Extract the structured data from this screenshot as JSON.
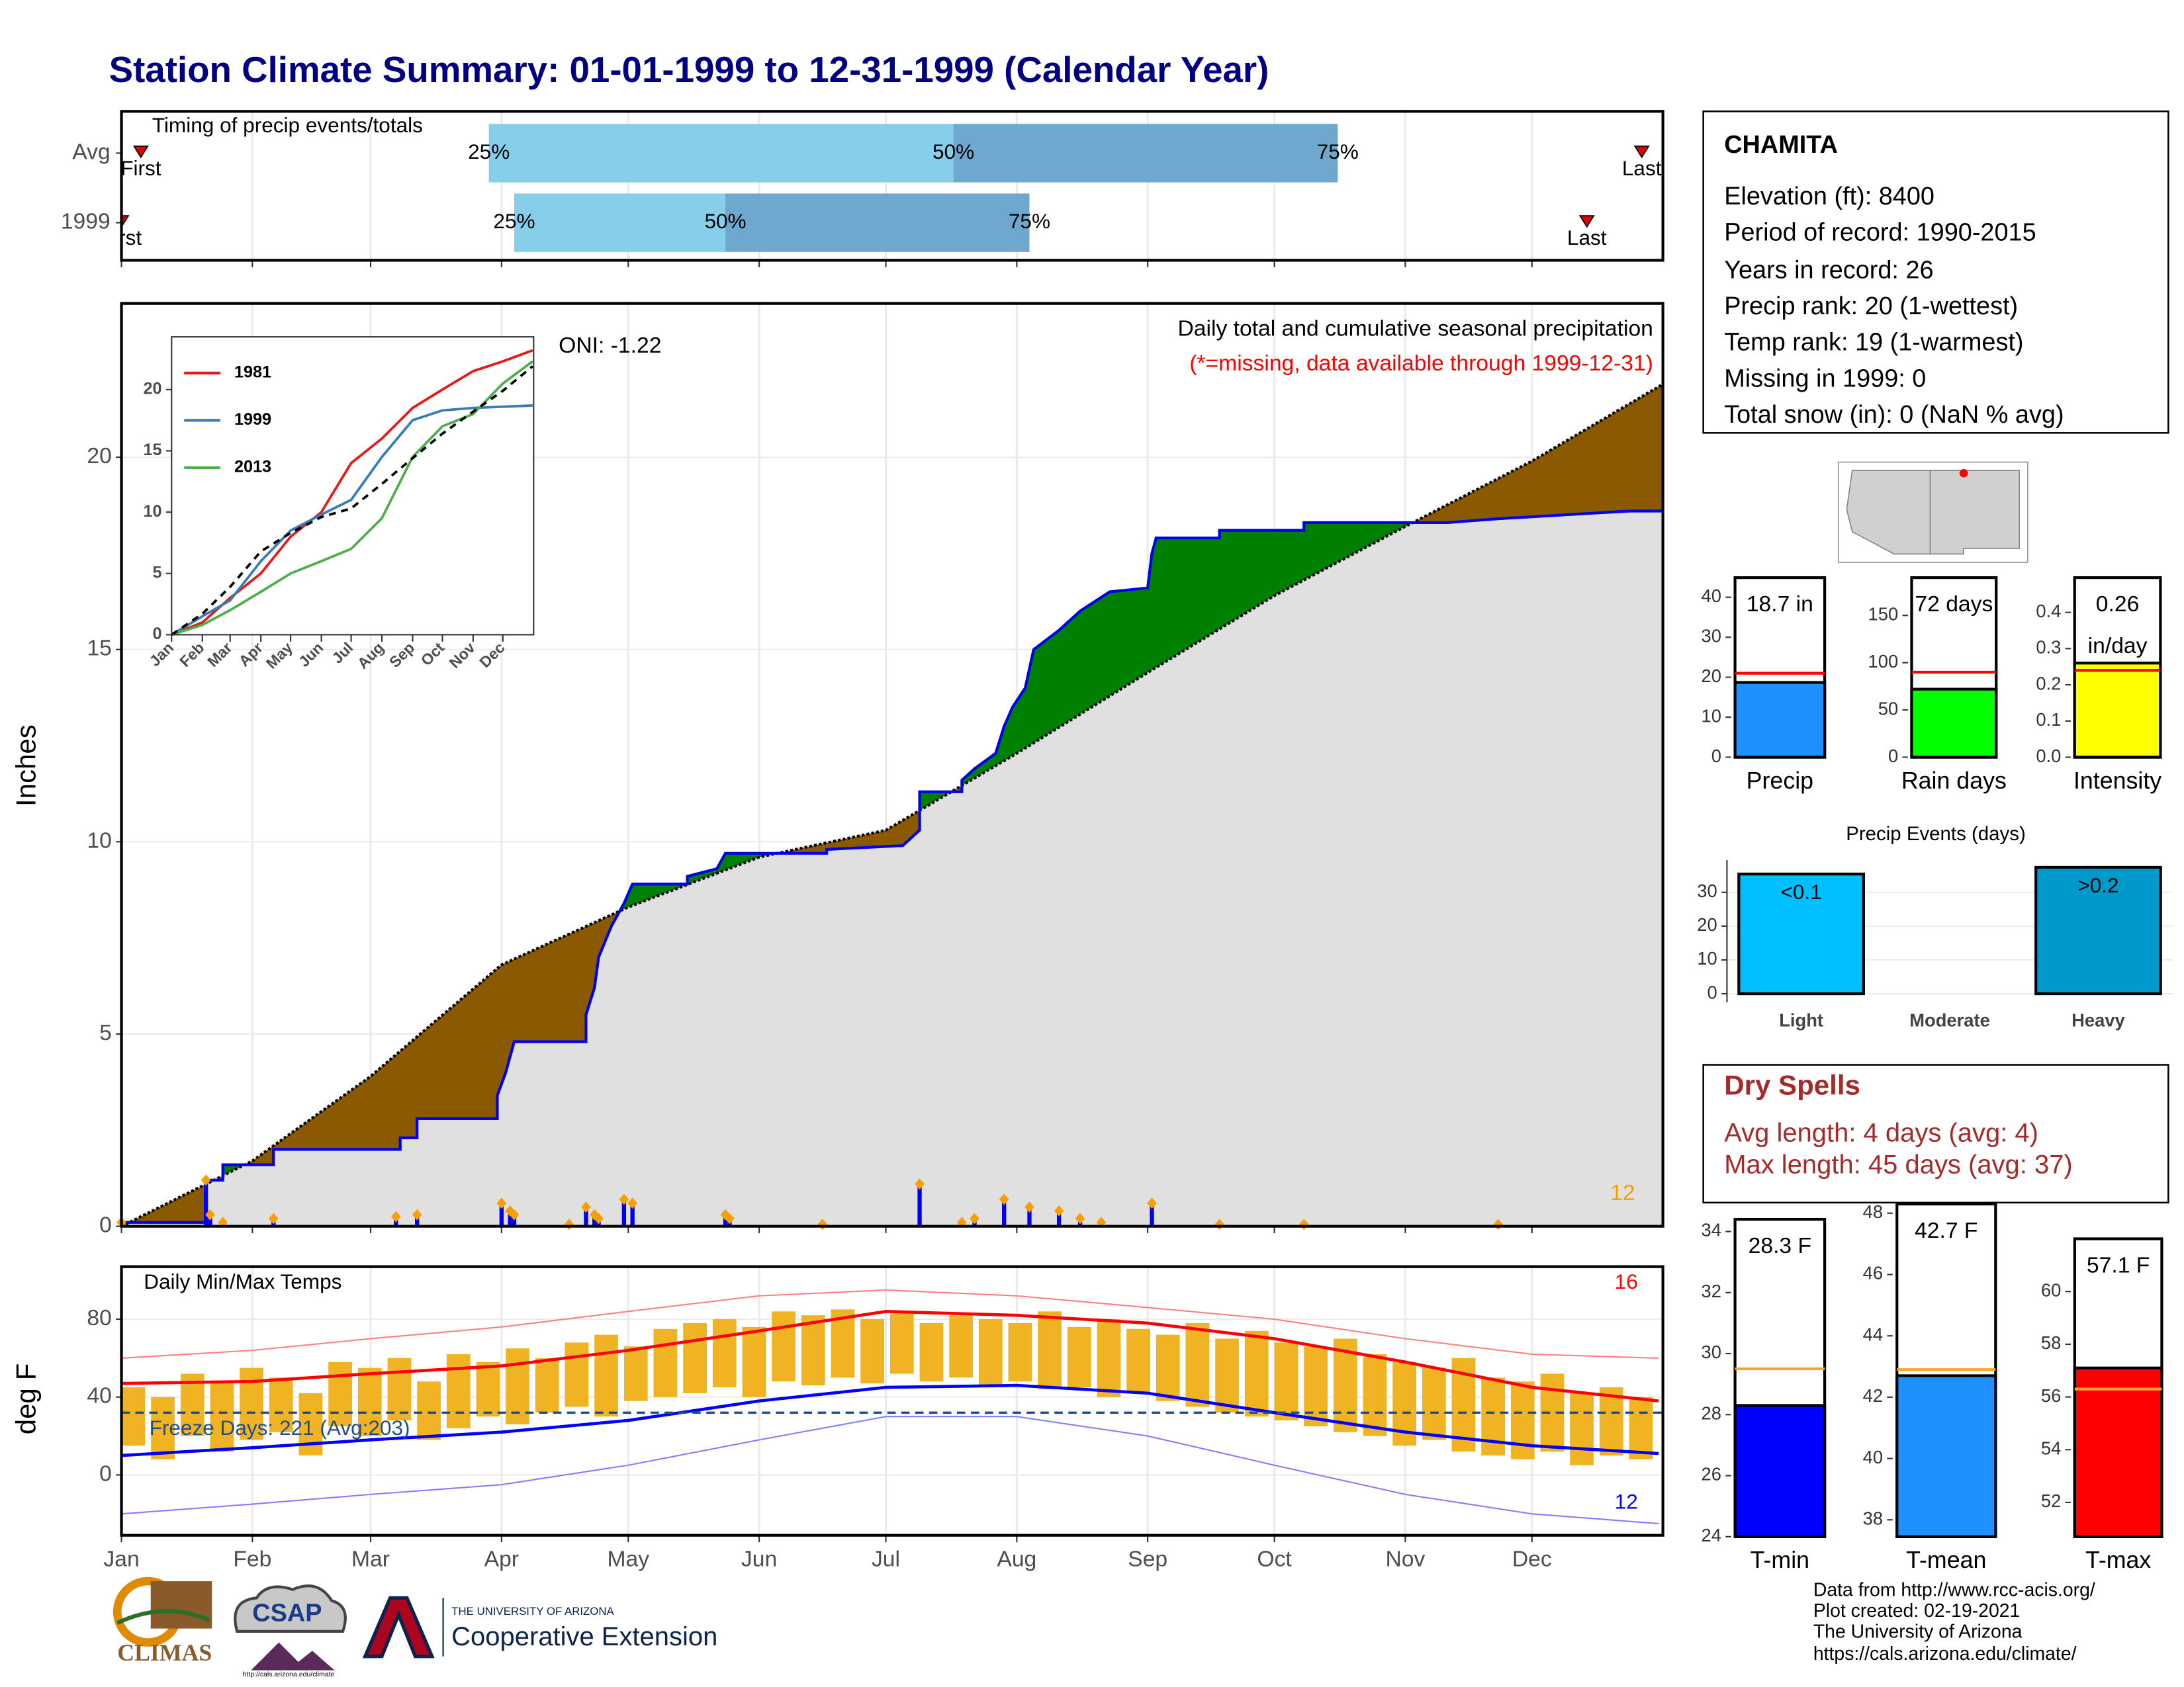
{
  "title": "Station Climate Summary: 01-01-1999 to 12-31-1999 (Calendar Year)",
  "station": {
    "name": "CHAMITA",
    "lines": [
      "Elevation (ft): 8400",
      "Period of record: 1990-2015",
      "Years in record: 26",
      "Precip rank: 20 (1-wettest)",
      "Temp rank: 19 (1-warmest)",
      "Missing in 1999: 0",
      "Total snow (in): 0 (NaN % avg)"
    ]
  },
  "dry_spells": {
    "title": "Dry Spells",
    "lines": [
      "Avg length: 4 days (avg: 4)",
      "Max length: 45 days (avg: 37)"
    ]
  },
  "footer": [
    "Data from http://www.rcc-acis.org/",
    "Plot created: 02-19-2021",
    "The University of Arizona",
    "https://cals.arizona.edu/climate/"
  ],
  "logos": {
    "climas": "CLIMAS",
    "csap": "CSAP",
    "csap_url": "http://cals.arizona.edu/climate",
    "university": "THE UNIVERSITY OF ARIZONA",
    "extension": "Cooperative Extension"
  },
  "chart_data": [
    {
      "type": "timing",
      "title": "Timing of precip events/totals",
      "categories": [
        "Avg",
        "1999"
      ],
      "first": [
        4.6,
        0
      ],
      "q25": [
        87,
        93
      ],
      "q50": [
        197,
        143
      ],
      "q75": [
        288,
        215
      ],
      "last": [
        360,
        347
      ],
      "labels": {
        "first": "First",
        "last": "Last",
        "q25": "25%",
        "q50": "50%",
        "q75": "75%"
      },
      "colors": {
        "low": "#87ceeb",
        "high": "#6fa8cf",
        "marker": "#e00000"
      },
      "xlim": [
        0,
        365
      ],
      "xticks": [
        0,
        31,
        59,
        90,
        120,
        151,
        181,
        212,
        243,
        273,
        304,
        334
      ],
      "grid": true
    },
    {
      "type": "area",
      "title": "Daily total and cumulative seasonal precipitation",
      "subtitle": "(*=missing, data available through 1999-12-31)",
      "oni": "ONI: -1.22",
      "count": "12",
      "ylabel": "Inches",
      "xlim": [
        0,
        365
      ],
      "xticks": [
        0,
        31,
        59,
        90,
        120,
        151,
        181,
        212,
        243,
        273,
        304,
        334
      ],
      "ylim": [
        0,
        24
      ],
      "yticks": [
        0,
        5,
        10,
        15,
        20
      ],
      "grid": true,
      "series": [
        {
          "color": "#000000",
          "x": [
            0,
            31,
            59,
            90,
            120,
            151,
            181,
            212,
            243,
            273,
            304,
            334,
            365
          ],
          "values": [
            0,
            1.7,
            3.9,
            6.8,
            8.3,
            9.6,
            10.3,
            12.3,
            14.4,
            16.4,
            18.2,
            19.9,
            21.9
          ]
        },
        {
          "color": "#0000ee",
          "x": [
            0,
            20,
            20,
            24,
            24,
            36,
            36,
            66,
            66,
            70,
            70,
            89,
            89,
            91,
            93,
            110,
            110,
            112,
            113,
            116,
            119,
            121,
            134,
            134,
            141,
            143,
            167,
            167,
            185,
            189,
            189,
            199,
            199,
            202,
            207,
            209,
            211,
            214,
            216,
            222,
            227,
            234,
            243,
            244,
            245,
            260,
            260,
            280,
            280,
            314,
            326,
            357,
            365
          ],
          "values": [
            0.1,
            0.1,
            1.2,
            1.2,
            1.6,
            1.6,
            2.0,
            2.0,
            2.3,
            2.3,
            2.8,
            2.8,
            3.4,
            4.0,
            4.8,
            4.8,
            5.5,
            6.2,
            7.0,
            7.8,
            8.4,
            8.9,
            8.9,
            9.1,
            9.3,
            9.7,
            9.7,
            9.8,
            9.9,
            10.3,
            11.3,
            11.3,
            11.6,
            11.9,
            12.3,
            13.0,
            13.5,
            14.0,
            15.0,
            15.5,
            16.0,
            16.5,
            16.6,
            17.5,
            17.9,
            17.9,
            18.1,
            18.1,
            18.3,
            18.3,
            18.4,
            18.6,
            18.6
          ]
        }
      ],
      "fill_colors": {
        "below_avg": "#8b5a00",
        "above_avg": "#008000",
        "base": "#e0e0e0"
      },
      "daily": {
        "color": "#0000ee",
        "marker_color": "#f5a000",
        "x": [
          0,
          20,
          21,
          24,
          36,
          65,
          70,
          90,
          92,
          93,
          106,
          110,
          112,
          113,
          119,
          121,
          143,
          144,
          166,
          189,
          199,
          202,
          209,
          215,
          222,
          227,
          232,
          244,
          260,
          280,
          326
        ],
        "values": [
          0.1,
          1.2,
          0.3,
          0.1,
          0.2,
          0.25,
          0.3,
          0.6,
          0.4,
          0.3,
          0.05,
          0.5,
          0.3,
          0.2,
          0.7,
          0.6,
          0.3,
          0.2,
          0.05,
          1.1,
          0.1,
          0.2,
          0.7,
          0.5,
          0.4,
          0.2,
          0.1,
          0.6,
          0.05,
          0.05,
          0.05
        ]
      }
    },
    {
      "type": "line",
      "xlim": [
        0,
        365
      ],
      "ylim": [
        0,
        24.3
      ],
      "yticks": [
        0,
        5,
        10,
        15,
        20
      ],
      "xticks": [
        {
          "value": 0,
          "label": "Jan"
        },
        {
          "value": 31,
          "label": "Feb"
        },
        {
          "value": 59,
          "label": "Mar"
        },
        {
          "value": 90,
          "label": "Apr"
        },
        {
          "value": 120,
          "label": "May"
        },
        {
          "value": 151,
          "label": "Jun"
        },
        {
          "value": 181,
          "label": "Jul"
        },
        {
          "value": 212,
          "label": "Aug"
        },
        {
          "value": 243,
          "label": "Sep"
        },
        {
          "value": 273,
          "label": "Oct"
        },
        {
          "value": 304,
          "label": "Nov"
        },
        {
          "value": 334,
          "label": "Dec"
        }
      ],
      "x": [
        0,
        31,
        59,
        90,
        120,
        151,
        181,
        212,
        243,
        273,
        304,
        334,
        364
      ],
      "series": [
        {
          "name": "1981",
          "color": "#e41a1c",
          "values": [
            0,
            1,
            3,
            5,
            8,
            10,
            14,
            16,
            18.5,
            20,
            21.5,
            22.3,
            23.2
          ]
        },
        {
          "name": "1999",
          "color": "#377eb8",
          "values": [
            0,
            1.5,
            2.8,
            6,
            8.5,
            9.8,
            11,
            14.5,
            17.5,
            18.3,
            18.5,
            18.6,
            18.7
          ]
        },
        {
          "name": "2013",
          "color": "#4daf4a",
          "values": [
            0,
            0.8,
            2,
            3.5,
            5,
            6,
            7,
            9.5,
            14.5,
            17,
            18,
            20.5,
            22.3
          ]
        },
        {
          "color": "#000000",
          "dash": true,
          "values": [
            0,
            1.7,
            3.9,
            6.8,
            8.3,
            9.6,
            10.3,
            12.3,
            14.4,
            16.4,
            18.2,
            19.9,
            21.9
          ]
        }
      ]
    },
    {
      "type": "range",
      "title": "Daily Min/Max Temps",
      "ylabel": "deg F",
      "freeze_text": "Freeze Days: 221 (Avg:203)",
      "freeze_line": 32,
      "count_hi": "16",
      "count_lo": "12",
      "xlim": [
        0,
        365
      ],
      "ylim": [
        -31,
        107
      ],
      "yticks": [
        0,
        40,
        80
      ],
      "grid": true,
      "xticks": [
        {
          "value": 0,
          "label": "Jan"
        },
        {
          "value": 31,
          "label": "Feb"
        },
        {
          "value": 59,
          "label": "Mar"
        },
        {
          "value": 90,
          "label": "Apr"
        },
        {
          "value": 120,
          "label": "May"
        },
        {
          "value": 151,
          "label": "Jun"
        },
        {
          "value": 181,
          "label": "Jul"
        },
        {
          "value": 212,
          "label": "Aug"
        },
        {
          "value": 243,
          "label": "Sep"
        },
        {
          "value": 273,
          "label": "Oct"
        },
        {
          "value": 304,
          "label": "Nov"
        },
        {
          "value": 334,
          "label": "Dec"
        }
      ],
      "x": [
        0,
        31,
        59,
        90,
        120,
        151,
        181,
        212,
        243,
        273,
        304,
        334,
        364
      ],
      "series": [
        {
          "color": "#ff8080",
          "thin": true,
          "values": [
            60,
            64,
            70,
            76,
            84,
            92,
            95,
            92,
            86,
            80,
            70,
            62,
            60
          ]
        },
        {
          "color": "#8080ff",
          "thin": true,
          "values": [
            -20,
            -15,
            -10,
            -5,
            5,
            18,
            30,
            30,
            20,
            5,
            -10,
            -20,
            -25
          ]
        },
        {
          "color": "#ff0000",
          "values": [
            47,
            48,
            52,
            56,
            64,
            74,
            84,
            82,
            78,
            70,
            58,
            45,
            38
          ]
        },
        {
          "color": "#0000ff",
          "values": [
            10,
            14,
            18,
            22,
            28,
            38,
            45,
            46,
            42,
            32,
            22,
            15,
            11
          ]
        }
      ],
      "daily": {
        "color": "#f0b323",
        "x": [
          0,
          7,
          14,
          21,
          28,
          35,
          42,
          49,
          56,
          63,
          70,
          77,
          84,
          91,
          98,
          105,
          112,
          119,
          126,
          133,
          140,
          147,
          154,
          161,
          168,
          175,
          182,
          189,
          196,
          203,
          210,
          217,
          224,
          231,
          238,
          245,
          252,
          259,
          266,
          273,
          280,
          287,
          294,
          301,
          308,
          315,
          322,
          329,
          336,
          343,
          350,
          357
        ],
        "hi": [
          45,
          40,
          52,
          48,
          55,
          50,
          42,
          58,
          55,
          60,
          48,
          62,
          58,
          65,
          60,
          68,
          72,
          66,
          75,
          78,
          80,
          76,
          84,
          82,
          85,
          80,
          83,
          78,
          82,
          80,
          78,
          84,
          76,
          80,
          75,
          72,
          78,
          70,
          74,
          68,
          66,
          70,
          62,
          58,
          55,
          60,
          50,
          48,
          52,
          42,
          45,
          40
        ],
        "lo": [
          15,
          8,
          20,
          12,
          18,
          22,
          10,
          25,
          20,
          28,
          18,
          24,
          30,
          26,
          32,
          35,
          30,
          38,
          40,
          42,
          45,
          40,
          48,
          46,
          50,
          47,
          52,
          48,
          50,
          46,
          48,
          44,
          45,
          40,
          42,
          38,
          35,
          32,
          30,
          28,
          25,
          22,
          20,
          15,
          18,
          12,
          10,
          8,
          12,
          5,
          10,
          8
        ]
      }
    },
    {
      "type": "bar",
      "categories": [
        "Precip"
      ],
      "values": [
        18.7
      ],
      "value_labels": [
        "18.7 in"
      ],
      "color": "#1e90ff",
      "avg": 21,
      "avg_color": "#ff0000",
      "ylim": [
        0,
        44.9
      ],
      "yticks": [
        0,
        10,
        20,
        30,
        40
      ]
    },
    {
      "type": "bar",
      "categories": [
        "Rain days"
      ],
      "values": [
        72
      ],
      "value_labels": [
        "72 days"
      ],
      "color": "#00ff00",
      "avg": 90,
      "avg_color": "#ff0000",
      "ylim": [
        0,
        190
      ],
      "yticks": [
        0,
        50,
        100,
        150
      ]
    },
    {
      "type": "bar",
      "categories": [
        "Intensity"
      ],
      "values": [
        0.26
      ],
      "value_labels": [
        "0.26"
      ],
      "unit": "in/day",
      "color": "#ffff00",
      "avg": 0.24,
      "avg_color": "#ff0000",
      "ylim": [
        0,
        0.496
      ],
      "yticks": [
        {
          "value": 0,
          "label": "0.0"
        },
        0.1,
        0.2,
        0.3,
        0.4
      ]
    },
    {
      "type": "bar",
      "title": "Precip Events (days)",
      "categories": [
        "Light",
        "Moderate",
        "Heavy"
      ],
      "values": [
        35.4,
        0,
        37.4
      ],
      "bar_labels": [
        "<0.1",
        null,
        ">0.2"
      ],
      "colors": [
        "#00bfff",
        "#0099cc",
        "#0099cc"
      ],
      "ylim": [
        -2.5,
        39.5
      ],
      "yticks": [
        0,
        10,
        20,
        30
      ],
      "grid": true
    },
    {
      "type": "bar",
      "categories": [
        "T-min"
      ],
      "values": [
        28.3
      ],
      "value_labels": [
        "28.3 F"
      ],
      "color": "#0000ff",
      "avg": 29.5,
      "avg_color": "#f5a623",
      "ylim": [
        24,
        34.4
      ],
      "yticks": [
        24,
        26,
        28,
        30,
        32,
        34
      ]
    },
    {
      "type": "bar",
      "categories": [
        "T-mean"
      ],
      "values": [
        42.7
      ],
      "value_labels": [
        "42.7 F"
      ],
      "color": "#1e90ff",
      "avg": 42.9,
      "avg_color": "#f5a623",
      "ylim": [
        37.45,
        48.3
      ],
      "yticks": [
        38,
        40,
        42,
        44,
        46,
        48
      ]
    },
    {
      "type": "bar",
      "categories": [
        "T-max"
      ],
      "values": [
        57.1
      ],
      "value_labels": [
        "57.1 F"
      ],
      "color": "#ff0000",
      "avg": 56.3,
      "avg_color": "#f5a623",
      "ylim": [
        50.7,
        62
      ],
      "yticks": [
        52,
        54,
        56,
        58,
        60
      ]
    }
  ]
}
